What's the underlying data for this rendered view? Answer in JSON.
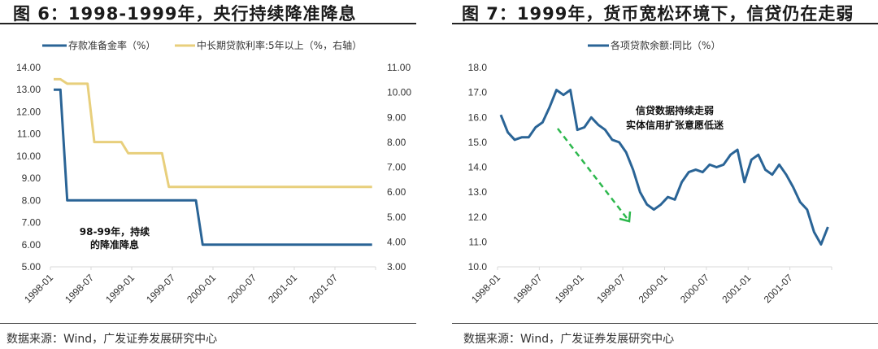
{
  "left": {
    "title": "图 6：1998-1999年，央行持续降准降息",
    "source": "数据来源：Wind，广发证券发展研究中心",
    "annotation_line1": "98-99年，持续",
    "annotation_line2": "的降准降息",
    "colors": {
      "reserve": "#2a6496",
      "loan_rate": "#e8cf7c"
    }
  },
  "right": {
    "title": "图 7：1999年，货币宽松环境下，信贷仍在走弱",
    "source": "数据来源：Wind，广发证券发展研究中心",
    "annotation_line1": "信贷数据持续走弱",
    "annotation_line2": "实体信用扩张意愿低迷",
    "colors": {
      "loans": "#2a6496",
      "arrow": "#2db84d"
    }
  },
  "chart_data": [
    {
      "type": "line",
      "title": "图 6：1998-1999年，央行持续降准降息",
      "xlabel": "",
      "ylabel": "",
      "x_ticks": [
        "1998-01",
        "1998-07",
        "1999-01",
        "1999-07",
        "2000-01",
        "2000-07",
        "2001-01",
        "2001-07"
      ],
      "y_left_ticks": [
        "14.00",
        "13.00",
        "12.00",
        "11.00",
        "10.00",
        "9.00",
        "8.00",
        "7.00",
        "6.00",
        "5.00"
      ],
      "y_right_ticks": [
        "11.00",
        "10.00",
        "9.00",
        "8.00",
        "7.00",
        "6.00",
        "5.00",
        "4.00",
        "3.00"
      ],
      "ylim_left": [
        5,
        14
      ],
      "ylim_right": [
        3,
        11
      ],
      "grid": false,
      "legend_position": "top",
      "series": [
        {
          "name": "存款准备金率（%）",
          "axis": "left",
          "points": [
            [
              "1998-01",
              13
            ],
            [
              "1998-02",
              13
            ],
            [
              "1998-03",
              8
            ],
            [
              "1999-10",
              8
            ],
            [
              "1999-11",
              6
            ],
            [
              "2001-12",
              6
            ]
          ]
        },
        {
          "name": "中长期贷款利率:5年以上（%，右轴）",
          "axis": "right",
          "points": [
            [
              "1998-01",
              10.53
            ],
            [
              "1998-02",
              10.53
            ],
            [
              "1998-03",
              10.35
            ],
            [
              "1998-06",
              10.35
            ],
            [
              "1998-07",
              8.01
            ],
            [
              "1998-11",
              8.01
            ],
            [
              "1998-12",
              7.56
            ],
            [
              "1999-05",
              7.56
            ],
            [
              "1999-06",
              6.21
            ],
            [
              "2001-12",
              6.21
            ]
          ]
        }
      ],
      "annotations": [
        "98-99年，持续的降准降息"
      ]
    },
    {
      "type": "line",
      "title": "图 7：1999年，货币宽松环境下，信贷仍在走弱",
      "xlabel": "",
      "ylabel": "",
      "x_ticks": [
        "1998-01",
        "1998-07",
        "1999-01",
        "1999-07",
        "2000-01",
        "2000-07",
        "2001-01",
        "2001-07"
      ],
      "y_ticks": [
        "18.0",
        "17.0",
        "16.0",
        "15.0",
        "14.0",
        "13.0",
        "12.0",
        "11.0",
        "10.0"
      ],
      "ylim": [
        10,
        18
      ],
      "grid": false,
      "legend_position": "top",
      "categories": [
        "1998-01",
        "1998-02",
        "1998-03",
        "1998-04",
        "1998-05",
        "1998-06",
        "1998-07",
        "1998-08",
        "1998-09",
        "1998-10",
        "1998-11",
        "1998-12",
        "1999-01",
        "1999-02",
        "1999-03",
        "1999-04",
        "1999-05",
        "1999-06",
        "1999-07",
        "1999-08",
        "1999-09",
        "1999-10",
        "1999-11",
        "1999-12",
        "2000-01",
        "2000-02",
        "2000-03",
        "2000-04",
        "2000-05",
        "2000-06",
        "2000-07",
        "2000-08",
        "2000-09",
        "2000-10",
        "2000-11",
        "2000-12",
        "2001-01",
        "2001-02",
        "2001-03",
        "2001-04",
        "2001-05",
        "2001-06",
        "2001-07",
        "2001-08",
        "2001-09",
        "2001-10",
        "2001-11",
        "2001-12"
      ],
      "series": [
        {
          "name": "各项贷款余额:同比（%）",
          "values": [
            16.1,
            15.4,
            15.1,
            15.2,
            15.2,
            15.6,
            15.8,
            16.4,
            17.1,
            16.9,
            17.1,
            15.5,
            15.6,
            16.0,
            15.7,
            15.5,
            15.1,
            15.0,
            14.6,
            13.9,
            13.0,
            12.5,
            12.3,
            12.5,
            12.8,
            12.7,
            13.4,
            13.8,
            13.9,
            13.8,
            14.1,
            14.0,
            14.1,
            14.5,
            14.7,
            13.4,
            14.3,
            14.5,
            13.9,
            13.7,
            14.1,
            13.7,
            13.2,
            12.6,
            12.3,
            11.4,
            10.9,
            11.6
          ]
        }
      ],
      "annotations": [
        "信贷数据持续走弱",
        "实体信用扩张意愿低迷",
        "green dashed downward arrow"
      ]
    }
  ]
}
